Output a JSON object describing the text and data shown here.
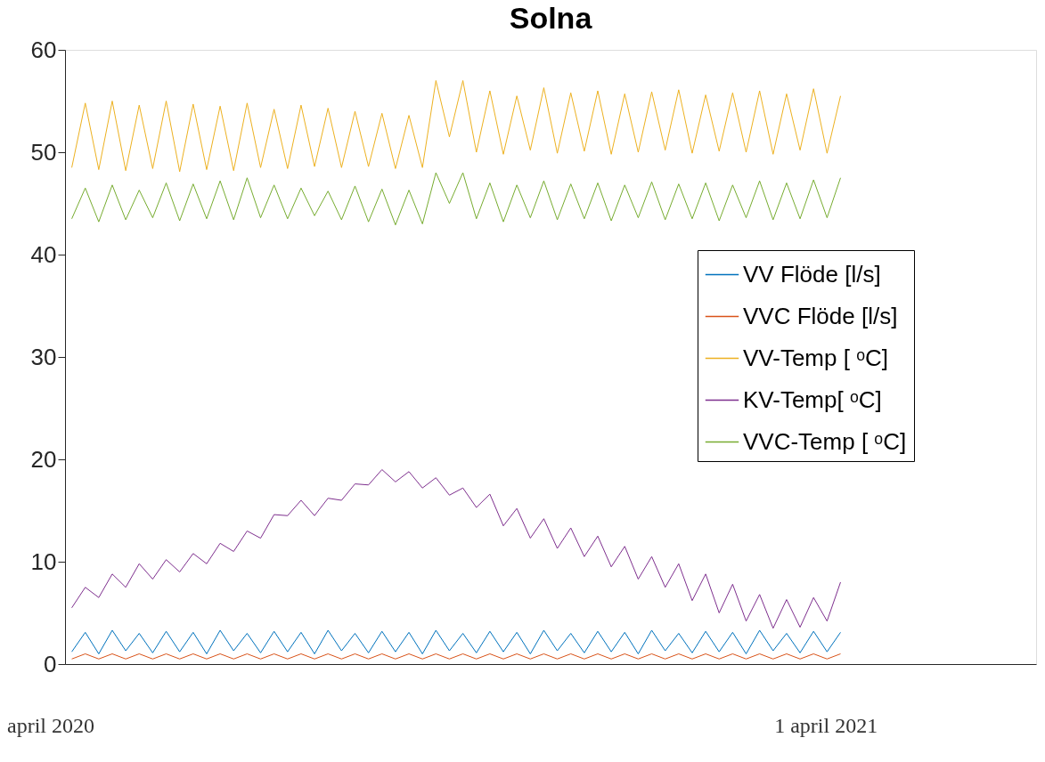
{
  "chart_data": {
    "type": "line",
    "title": "Solna",
    "categories": [
      null,
      null,
      null,
      null,
      null,
      null,
      null,
      null,
      null,
      null,
      null,
      null,
      null,
      null,
      null,
      null,
      null,
      null,
      null,
      null,
      null,
      null,
      null,
      null,
      null,
      null,
      null,
      null,
      null,
      null,
      null,
      null,
      null,
      null,
      null,
      null,
      null,
      null,
      null,
      null,
      null,
      null,
      null,
      null,
      null,
      null,
      null,
      null,
      null,
      null,
      null,
      null,
      null,
      null,
      null,
      null,
      null,
      null,
      null,
      null,
      null,
      null,
      null,
      null,
      null,
      null,
      null,
      null,
      null,
      null,
      null,
      null
    ],
    "series": [
      {
        "name": "VV Flöde [l/s]",
        "color": "#0072bd",
        "values": [
          1.2,
          3.1,
          1.0,
          3.3,
          1.3,
          3.0,
          1.1,
          3.2,
          1.2,
          3.1,
          1.0,
          3.3,
          1.3,
          3.0,
          1.1,
          3.2,
          1.2,
          3.1,
          1.0,
          3.3,
          1.3,
          3.0,
          1.1,
          3.2,
          1.2,
          3.1,
          1.0,
          3.3,
          1.3,
          3.0,
          1.1,
          3.2,
          1.2,
          3.1,
          1.0,
          3.3,
          1.3,
          3.0,
          1.1,
          3.2,
          1.2,
          3.1,
          1.0,
          3.3,
          1.3,
          3.0,
          1.1,
          3.2,
          1.2,
          3.1,
          1.0,
          3.3,
          1.3,
          3.0,
          1.1,
          3.2,
          1.2,
          3.1,
          null,
          null,
          null,
          null,
          null,
          null,
          null,
          null,
          null,
          null,
          null,
          null,
          null,
          null
        ]
      },
      {
        "name": "VVC Flöde [l/s]",
        "color": "#d95319",
        "values": [
          0.5,
          1.0,
          0.5,
          1.0,
          0.5,
          1.0,
          0.5,
          1.0,
          0.5,
          1.0,
          0.5,
          1.0,
          0.5,
          1.0,
          0.5,
          1.0,
          0.5,
          1.0,
          0.5,
          1.0,
          0.5,
          1.0,
          0.5,
          1.0,
          0.5,
          1.0,
          0.5,
          1.0,
          0.5,
          1.0,
          0.5,
          1.0,
          0.5,
          1.0,
          0.5,
          1.0,
          0.5,
          1.0,
          0.5,
          1.0,
          0.5,
          1.0,
          0.5,
          1.0,
          0.5,
          1.0,
          0.5,
          1.0,
          0.5,
          1.0,
          0.5,
          1.0,
          0.5,
          1.0,
          0.5,
          1.0,
          0.5,
          1.0,
          null,
          null,
          null,
          null,
          null,
          null,
          null,
          null,
          null,
          null,
          null,
          null,
          null,
          null
        ]
      },
      {
        "name": "VV-Temp [ ᵒC]",
        "color": "#edb120",
        "values": [
          48.5,
          54.8,
          48.3,
          55,
          48.2,
          54.6,
          48.4,
          55,
          48.1,
          54.7,
          48.3,
          54.5,
          48.2,
          54.8,
          48.5,
          54.2,
          48.4,
          54.6,
          48.6,
          54.3,
          48.5,
          54,
          48.6,
          53.8,
          48.4,
          53.6,
          48.5,
          57,
          51.5,
          57,
          50,
          56,
          49.8,
          55.5,
          50.2,
          56.3,
          49.9,
          55.8,
          50.1,
          56,
          49.8,
          55.7,
          50,
          55.9,
          50.2,
          56.1,
          49.9,
          55.6,
          50.1,
          55.8,
          50,
          56,
          49.8,
          55.7,
          50.2,
          56.2,
          49.9,
          55.5,
          null,
          null,
          null,
          null,
          null,
          null,
          null,
          null,
          null,
          null,
          null,
          null,
          null,
          null
        ]
      },
      {
        "name": "KV-Temp[ ᵒC]",
        "color": "#7e2f8e",
        "values": [
          5.5,
          7.5,
          6.5,
          8.8,
          7.5,
          9.8,
          8.3,
          10.2,
          9,
          10.8,
          9.8,
          11.8,
          11,
          13,
          12.3,
          14.6,
          14.5,
          16,
          14.5,
          16.2,
          16,
          17.6,
          17.5,
          19,
          17.8,
          18.8,
          17.2,
          18.2,
          16.5,
          17.2,
          15.3,
          16.6,
          13.5,
          15.2,
          12.3,
          14.2,
          11.3,
          13.3,
          10.5,
          12.5,
          9.5,
          11.5,
          8.3,
          10.5,
          7.5,
          9.8,
          6.2,
          8.8,
          5,
          7.8,
          4.2,
          6.8,
          3.5,
          6.3,
          3.6,
          6.5,
          4.2,
          8,
          null,
          null,
          null,
          null,
          null,
          null,
          null,
          null,
          null,
          null,
          null,
          null,
          null,
          null
        ]
      },
      {
        "name": "VVC-Temp [ ᵒC]",
        "color": "#77ac30",
        "values": [
          43.5,
          46.5,
          43.2,
          46.8,
          43.4,
          46.3,
          43.6,
          47,
          43.3,
          46.9,
          43.5,
          47.2,
          43.4,
          47.5,
          43.6,
          46.8,
          43.5,
          46.5,
          43.8,
          46.2,
          43.4,
          46.7,
          43.2,
          46.4,
          42.9,
          46.3,
          43,
          48,
          45,
          48,
          43.5,
          47,
          43.2,
          46.8,
          43.6,
          47.2,
          43.4,
          46.9,
          43.5,
          47,
          43.3,
          46.8,
          43.6,
          47.1,
          43.4,
          46.9,
          43.5,
          47,
          43.3,
          46.8,
          43.6,
          47.2,
          43.4,
          47,
          43.5,
          47.3,
          43.6,
          47.5,
          null,
          null,
          null,
          null,
          null,
          null,
          null,
          null,
          null,
          null,
          null,
          null,
          null,
          null
        ]
      }
    ],
    "ylim": [
      0,
      60
    ],
    "yticks": [
      0,
      10,
      20,
      30,
      40,
      50,
      60
    ],
    "grid": false,
    "legend": "right",
    "tick_labels": "y",
    "marker": "none",
    "line_style": "solid",
    "annotations": [
      "april 2020",
      "1 april 2021"
    ]
  }
}
